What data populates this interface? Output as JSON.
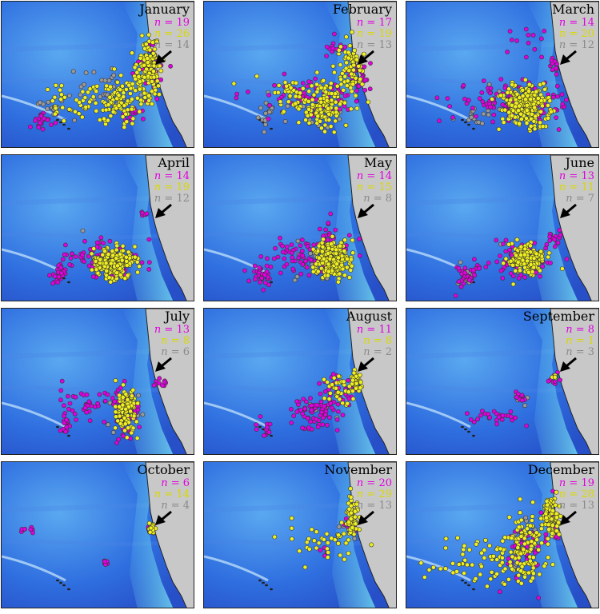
{
  "colors": {
    "ocean_deep": "#2f6fe0",
    "ocean_shelf": "#6fd6f0",
    "land": "#c8c8c8",
    "series_a": "#e000e0",
    "series_b": "#f0f020",
    "series_c": "#9a9a9a",
    "arrow": "#000000"
  },
  "count_prefix": "n = ",
  "panels": [
    {
      "month": "January",
      "counts": [
        "19",
        "26",
        "14"
      ],
      "density": [
        70,
        260,
        40
      ],
      "spread": 1.0
    },
    {
      "month": "February",
      "counts": [
        "17",
        "19",
        "13"
      ],
      "density": [
        110,
        230,
        40
      ],
      "spread": 1.0
    },
    {
      "month": "March",
      "counts": [
        "14",
        "20",
        "12"
      ],
      "density": [
        150,
        260,
        30
      ],
      "spread": 0.9
    },
    {
      "month": "April",
      "counts": [
        "14",
        "19",
        "12"
      ],
      "density": [
        110,
        240,
        25
      ],
      "spread": 0.8
    },
    {
      "month": "May",
      "counts": [
        "14",
        "15",
        "8"
      ],
      "density": [
        130,
        210,
        20
      ],
      "spread": 0.8
    },
    {
      "month": "June",
      "counts": [
        "13",
        "11",
        "7"
      ],
      "density": [
        110,
        150,
        25
      ],
      "spread": 0.8
    },
    {
      "month": "July",
      "counts": [
        "13",
        "8",
        "6"
      ],
      "density": [
        130,
        110,
        20
      ],
      "spread": 0.7
    },
    {
      "month": "August",
      "counts": [
        "11",
        "8",
        "2"
      ],
      "density": [
        110,
        60,
        8
      ],
      "spread": 0.7
    },
    {
      "month": "September",
      "counts": [
        "8",
        "1",
        "3"
      ],
      "density": [
        45,
        5,
        6
      ],
      "spread": 0.6
    },
    {
      "month": "October",
      "counts": [
        "6",
        "14",
        "4"
      ],
      "density": [
        25,
        15,
        4
      ],
      "spread": 0.5
    },
    {
      "month": "November",
      "counts": [
        "20",
        "29",
        "13"
      ],
      "density": [
        25,
        110,
        10
      ],
      "spread": 0.8
    },
    {
      "month": "December",
      "counts": [
        "19",
        "28",
        "13"
      ],
      "density": [
        60,
        280,
        25
      ],
      "spread": 1.0
    }
  ]
}
